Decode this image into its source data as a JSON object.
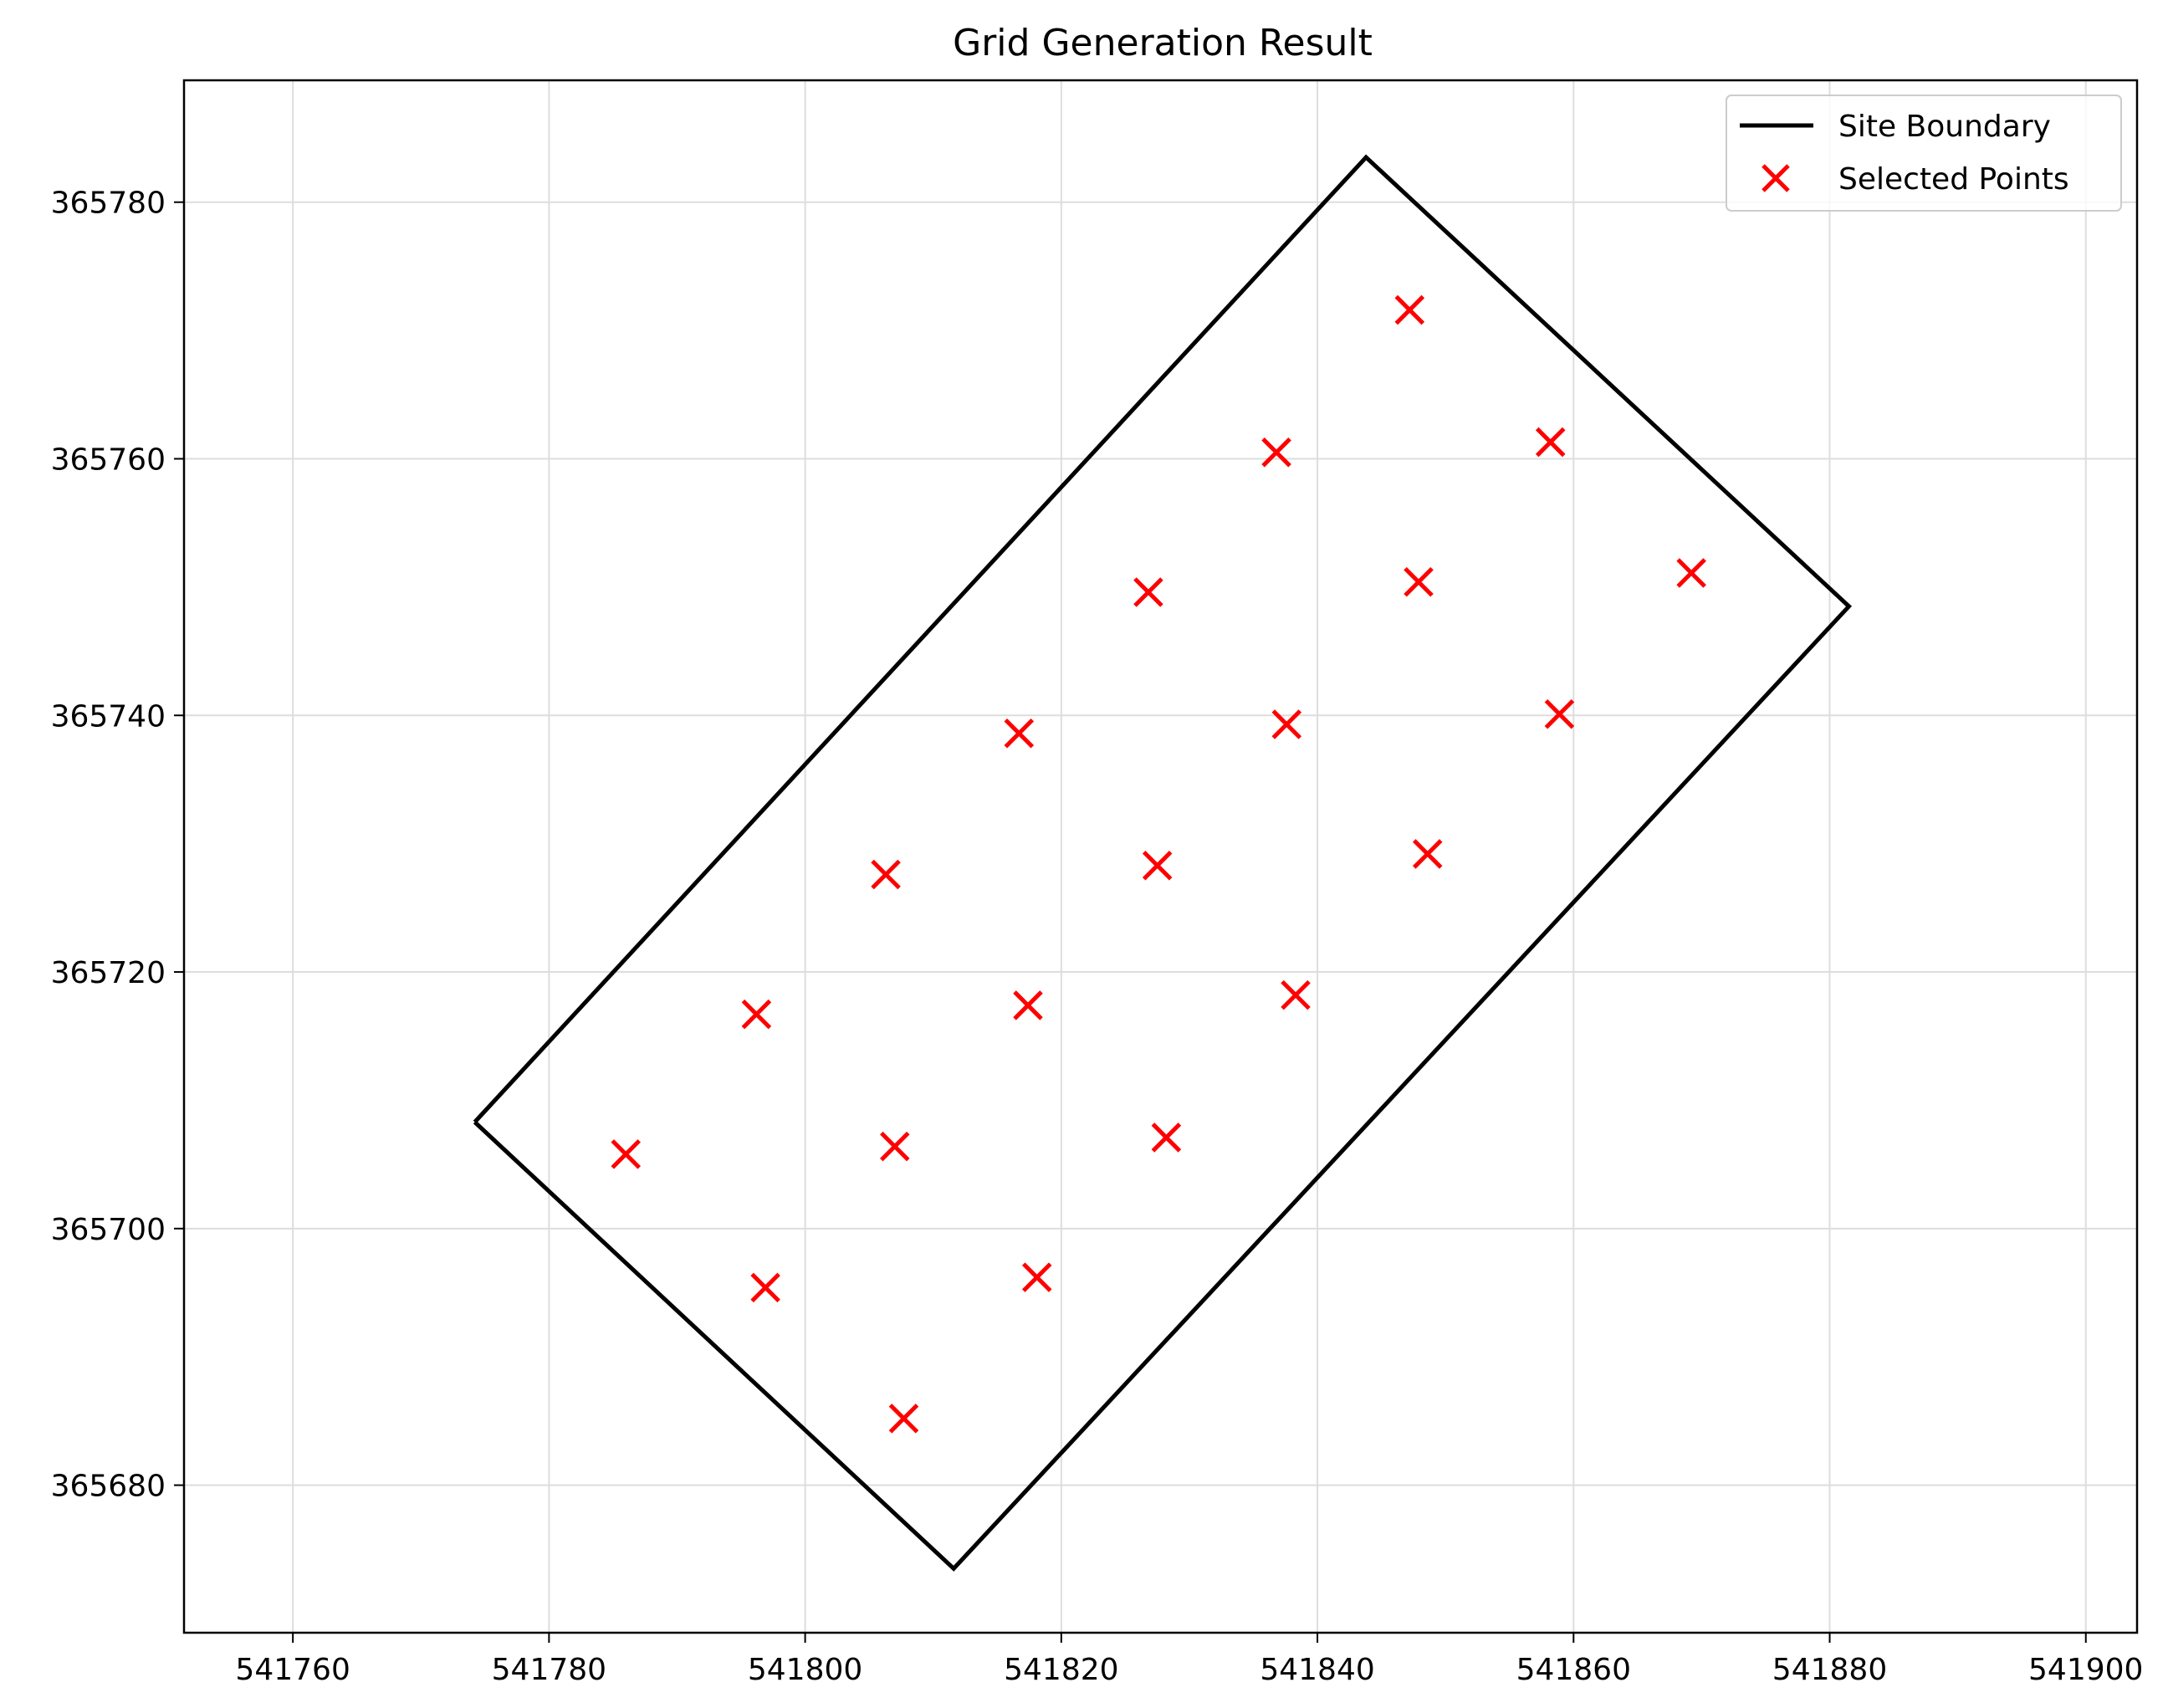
{
  "chart_data": {
    "type": "scatter",
    "title": "Grid Generation Result",
    "xlabel": "",
    "ylabel": "",
    "xlim": [
      541751.5,
      541904
    ],
    "ylim": [
      365668.5,
      365789.5
    ],
    "x_ticks": [
      541760,
      541780,
      541800,
      541820,
      541840,
      541860,
      541880,
      541900
    ],
    "y_ticks": [
      365680,
      365700,
      365720,
      365740,
      365760,
      365780
    ],
    "grid": true,
    "legend_position": "top-right",
    "series": [
      {
        "name": "Site Boundary",
        "kind": "line",
        "color": "#000000",
        "points": [
          [
            541774.2,
            365708.3
          ],
          [
            541843.8,
            365783.5
          ],
          [
            541881.5,
            365748.5
          ],
          [
            541811.6,
            365673.5
          ],
          [
            541774.2,
            365708.3
          ]
        ]
      },
      {
        "name": "Selected Points",
        "kind": "scatter",
        "marker": "x",
        "color": "#ff0000",
        "points": [
          [
            541786.0,
            365705.8
          ],
          [
            541796.2,
            365716.7
          ],
          [
            541796.9,
            365695.4
          ],
          [
            541806.3,
            365727.6
          ],
          [
            541807.0,
            365706.4
          ],
          [
            541807.7,
            365685.2
          ],
          [
            541816.7,
            365738.6
          ],
          [
            541817.4,
            365717.4
          ],
          [
            541818.1,
            365696.2
          ],
          [
            541826.8,
            365749.6
          ],
          [
            541827.5,
            365728.3
          ],
          [
            541828.2,
            365707.1
          ],
          [
            541836.8,
            365760.5
          ],
          [
            541837.6,
            365739.3
          ],
          [
            541838.3,
            365718.2
          ],
          [
            541847.2,
            365771.6
          ],
          [
            541847.9,
            365750.4
          ],
          [
            541848.6,
            365729.2
          ],
          [
            541858.2,
            365761.3
          ],
          [
            541858.9,
            365740.1
          ],
          [
            541869.2,
            365751.1
          ]
        ]
      }
    ]
  }
}
